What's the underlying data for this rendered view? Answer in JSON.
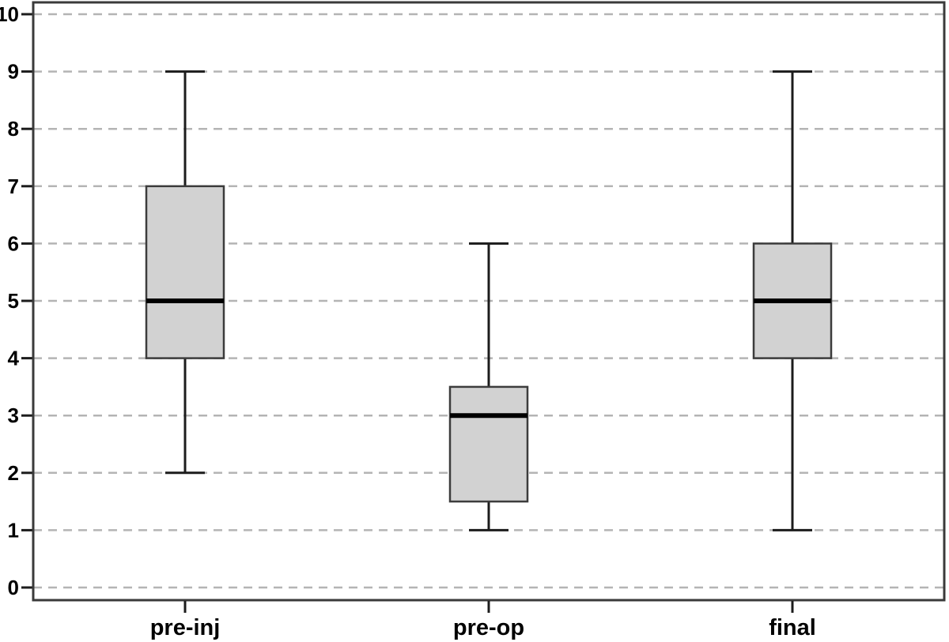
{
  "chart_data": {
    "type": "boxplot",
    "title": "",
    "xlabel": "",
    "ylabel": "",
    "categories": [
      "pre-inj",
      "pre-op",
      "final"
    ],
    "series": [
      {
        "name": "pre-inj",
        "whisker_low": 2,
        "q1": 4,
        "median": 5,
        "q3": 7,
        "whisker_high": 9
      },
      {
        "name": "pre-op",
        "whisker_low": 1,
        "q1": 1.5,
        "median": 3,
        "q3": 3.5,
        "whisker_high": 6
      },
      {
        "name": "final",
        "whisker_low": 1,
        "q1": 4,
        "median": 5,
        "q3": 6,
        "whisker_high": 9
      }
    ],
    "ylim": [
      0,
      10
    ],
    "yticks": [
      0,
      1,
      2,
      3,
      4,
      5,
      6,
      7,
      8,
      9,
      10
    ],
    "grid": "horizontal-dashed",
    "legend": "none"
  },
  "colors": {
    "background": "#ffffff",
    "box_fill": "#d2d2d2",
    "box_border": "#3c3c3c",
    "median": "#000000",
    "whisker": "#1c1c1c",
    "gridline": "#b4b4b4",
    "frame": "#3a3a3a",
    "axis_tick": "#1c1c1c",
    "text": "#000000"
  }
}
